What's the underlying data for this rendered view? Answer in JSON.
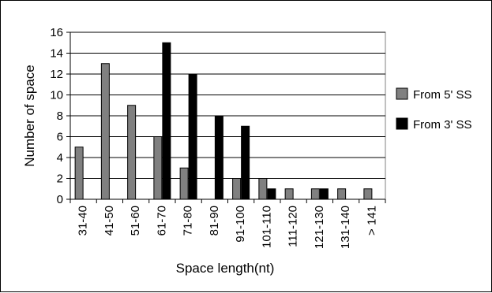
{
  "chart_data": {
    "type": "bar",
    "title": "",
    "xlabel": "Space length(nt)",
    "ylabel": "Number of space",
    "ylim": [
      0,
      16
    ],
    "yticks": [
      0,
      2,
      4,
      6,
      8,
      10,
      12,
      14,
      16
    ],
    "grid": true,
    "legend_position": "right",
    "categories": [
      "31-40",
      "41-50",
      "51-60",
      "61-70",
      "71-80",
      "81-90",
      "91-100",
      "101-110",
      "111-120",
      "121-130",
      "131-140",
      "> 141"
    ],
    "series": [
      {
        "name": "From 5' SS",
        "color": "#808080",
        "values": [
          5,
          13,
          9,
          6,
          3,
          0,
          2,
          2,
          1,
          1,
          1,
          1
        ]
      },
      {
        "name": "From 3' SS",
        "color": "#000000",
        "values": [
          0,
          0,
          0,
          15,
          12,
          8,
          7,
          1,
          0,
          1,
          0,
          0
        ]
      }
    ]
  }
}
